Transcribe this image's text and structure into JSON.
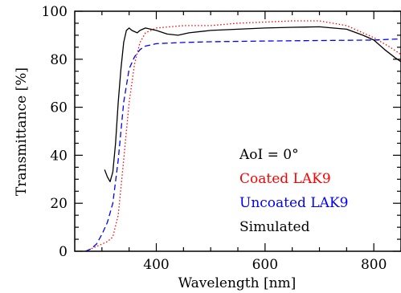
{
  "chart_data": {
    "type": "line",
    "xlabel": "Wavelength [nm]",
    "ylabel": "Transmittance [%]",
    "xlim": [
      250,
      850
    ],
    "ylim": [
      0,
      100
    ],
    "x_ticks": [
      400,
      600,
      800
    ],
    "y_ticks": [
      0,
      20,
      40,
      60,
      80,
      100
    ],
    "grid": false,
    "legend_position": "center-right",
    "annotation": "AoI = 0°",
    "series": [
      {
        "name": "Coated LAK9",
        "color": "#ff0000",
        "style": "dotted",
        "points": [
          [
            270,
            0
          ],
          [
            290,
            2
          ],
          [
            310,
            4
          ],
          [
            320,
            6
          ],
          [
            330,
            15
          ],
          [
            340,
            38
          ],
          [
            350,
            62
          ],
          [
            360,
            78
          ],
          [
            370,
            87
          ],
          [
            380,
            91
          ],
          [
            400,
            93
          ],
          [
            450,
            94
          ],
          [
            500,
            94
          ],
          [
            550,
            95
          ],
          [
            600,
            95.5
          ],
          [
            650,
            96
          ],
          [
            700,
            96
          ],
          [
            750,
            94
          ],
          [
            800,
            89
          ],
          [
            830,
            85
          ],
          [
            850,
            82
          ]
        ]
      },
      {
        "name": "Uncoated LAK9",
        "color": "#0000ff",
        "style": "dashed",
        "points": [
          [
            270,
            0
          ],
          [
            280,
            1
          ],
          [
            290,
            3
          ],
          [
            300,
            7
          ],
          [
            310,
            12
          ],
          [
            320,
            20
          ],
          [
            330,
            38
          ],
          [
            340,
            62
          ],
          [
            350,
            76
          ],
          [
            360,
            81
          ],
          [
            370,
            84
          ],
          [
            380,
            85.5
          ],
          [
            400,
            86.5
          ],
          [
            450,
            87
          ],
          [
            500,
            87.3
          ],
          [
            600,
            87.6
          ],
          [
            700,
            87.8
          ],
          [
            800,
            88
          ],
          [
            850,
            88.5
          ]
        ]
      },
      {
        "name": "Simulated",
        "color": "#000000",
        "style": "solid",
        "points": [
          [
            305,
            34
          ],
          [
            310,
            31
          ],
          [
            315,
            29
          ],
          [
            320,
            33
          ],
          [
            325,
            45
          ],
          [
            330,
            62
          ],
          [
            335,
            76
          ],
          [
            340,
            87
          ],
          [
            345,
            92
          ],
          [
            350,
            93
          ],
          [
            355,
            92
          ],
          [
            360,
            91.5
          ],
          [
            365,
            91
          ],
          [
            370,
            92
          ],
          [
            380,
            93
          ],
          [
            390,
            92.5
          ],
          [
            400,
            92
          ],
          [
            420,
            90.5
          ],
          [
            440,
            90
          ],
          [
            460,
            91
          ],
          [
            500,
            92
          ],
          [
            550,
            92.5
          ],
          [
            600,
            93
          ],
          [
            650,
            93.3
          ],
          [
            700,
            93.5
          ],
          [
            750,
            92.5
          ],
          [
            780,
            90
          ],
          [
            800,
            88
          ],
          [
            820,
            84
          ],
          [
            840,
            80.5
          ],
          [
            850,
            79
          ]
        ]
      }
    ]
  }
}
